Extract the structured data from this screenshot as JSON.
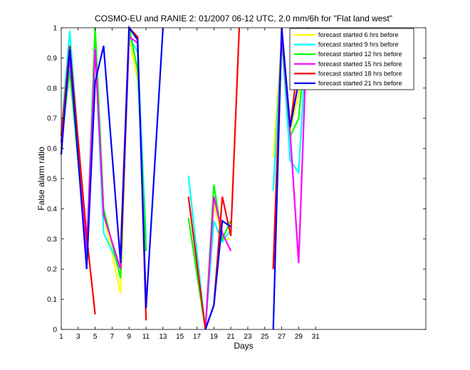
{
  "chart_data": {
    "type": "line",
    "title": "COSMO-EU and RANIE 2: 01/2007 06-12 UTC, 2.0 mm/6h for \"Flat land west\"",
    "xlabel": "Days",
    "ylabel": "False alarm ratio",
    "xlim": [
      1,
      44
    ],
    "ylim": [
      0,
      1
    ],
    "x_ticks": [
      1,
      3,
      5,
      7,
      9,
      11,
      13,
      15,
      17,
      19,
      21,
      23,
      25,
      27,
      29,
      31
    ],
    "y_ticks": [
      0,
      0.1,
      0.2,
      0.3,
      0.4,
      0.5,
      0.6,
      0.7,
      0.8,
      0.9,
      1
    ],
    "grid": false,
    "legend_position": "top-right",
    "series": [
      {
        "name": "forecast started 6 hrs before",
        "color": "#ffff00",
        "values": [
          [
            1,
            0.6
          ],
          [
            2,
            0.88
          ],
          [
            4,
            0.22
          ],
          [
            5,
            0.97
          ],
          [
            6,
            0.38
          ],
          [
            8,
            0.12
          ],
          [
            9,
            0.97
          ],
          [
            10,
            0.83
          ],
          [
            11,
            null
          ],
          [
            16,
            null
          ],
          [
            18,
            0.0
          ],
          [
            19,
            0.42
          ],
          [
            20,
            0.3
          ],
          [
            21,
            0.3
          ],
          [
            26,
            0.57
          ],
          [
            27,
            0.96
          ],
          [
            28,
            0.66
          ],
          [
            29,
            0.78
          ],
          [
            30,
            1.0
          ]
        ]
      },
      {
        "name": "forecast started 9 hrs before",
        "color": "#00ffff",
        "values": [
          [
            1,
            0.65
          ],
          [
            2,
            0.99
          ],
          [
            4,
            0.24
          ],
          [
            5,
            0.93
          ],
          [
            6,
            0.32
          ],
          [
            8,
            0.2
          ],
          [
            9,
            0.97
          ],
          [
            10,
            0.92
          ],
          [
            11,
            0.3
          ],
          [
            16,
            0.51
          ],
          [
            18,
            0.0
          ],
          [
            19,
            0.36
          ],
          [
            20,
            0.29
          ],
          [
            21,
            0.33
          ],
          [
            26,
            0.46
          ],
          [
            27,
            0.97
          ],
          [
            28,
            0.56
          ],
          [
            29,
            0.52
          ],
          [
            30,
            1.0
          ]
        ]
      },
      {
        "name": "forecast started 12 hrs before",
        "color": "#00ff00",
        "values": [
          [
            1,
            0.62
          ],
          [
            2,
            0.86
          ],
          [
            4,
            0.25
          ],
          [
            5,
            1.0
          ],
          [
            6,
            0.4
          ],
          [
            8,
            0.17
          ],
          [
            9,
            1.0
          ],
          [
            10,
            0.86
          ],
          [
            11,
            0.26
          ],
          [
            16,
            0.37
          ],
          [
            18,
            0.0
          ],
          [
            19,
            0.48
          ],
          [
            20,
            0.3
          ],
          [
            21,
            0.36
          ],
          [
            26,
            0.2
          ],
          [
            27,
            0.96
          ],
          [
            28,
            0.64
          ],
          [
            29,
            0.7
          ],
          [
            30,
            1.0
          ]
        ]
      },
      {
        "name": "forecast started 15 hrs before",
        "color": "#ff00ff",
        "values": [
          [
            1,
            0.62
          ],
          [
            2,
            0.9
          ],
          [
            4,
            0.26
          ],
          [
            5,
            0.93
          ],
          [
            6,
            0.38
          ],
          [
            8,
            0.2
          ],
          [
            9,
            0.97
          ],
          [
            10,
            0.95
          ],
          [
            11,
            0.08
          ],
          [
            16,
            null
          ],
          [
            18,
            0.0
          ],
          [
            19,
            0.44
          ],
          [
            20,
            0.32
          ],
          [
            21,
            0.26
          ],
          [
            26,
            0.2
          ],
          [
            27,
            0.98
          ],
          [
            28,
            0.65
          ],
          [
            29,
            0.22
          ],
          [
            30,
            1.0
          ]
        ]
      },
      {
        "name": "forecast started 18 hrs before",
        "color": "#ff0000",
        "values": [
          [
            1,
            0.64
          ],
          [
            2,
            0.94
          ],
          [
            4,
            0.31
          ],
          [
            5,
            0.05
          ],
          [
            6,
            null
          ],
          [
            8,
            0.26
          ],
          [
            9,
            1.0
          ],
          [
            10,
            0.97
          ],
          [
            11,
            0.03
          ],
          [
            16,
            0.44
          ],
          [
            18,
            0.0
          ],
          [
            19,
            0.08
          ],
          [
            20,
            0.44
          ],
          [
            21,
            0.31
          ],
          [
            22,
            1.0
          ],
          [
            26,
            0.2
          ],
          [
            27,
            1.0
          ],
          [
            28,
            0.67
          ],
          [
            29,
            0.9
          ],
          [
            30,
            1.0
          ]
        ]
      },
      {
        "name": "forecast started 21 hrs before",
        "color": "#0000ff",
        "values": [
          [
            1,
            0.58
          ],
          [
            2,
            0.93
          ],
          [
            4,
            0.2
          ],
          [
            5,
            0.82
          ],
          [
            6,
            0.94
          ],
          [
            8,
            0.22
          ],
          [
            9,
            1.0
          ],
          [
            10,
            0.96
          ],
          [
            11,
            0.07
          ],
          [
            13,
            1.0
          ],
          [
            18,
            0.0
          ],
          [
            19,
            0.08
          ],
          [
            20,
            0.36
          ],
          [
            21,
            0.34
          ],
          [
            26,
            0.0
          ],
          [
            27,
            1.0
          ],
          [
            28,
            0.67
          ],
          [
            29,
            0.82
          ],
          [
            30,
            1.0
          ]
        ]
      }
    ]
  }
}
